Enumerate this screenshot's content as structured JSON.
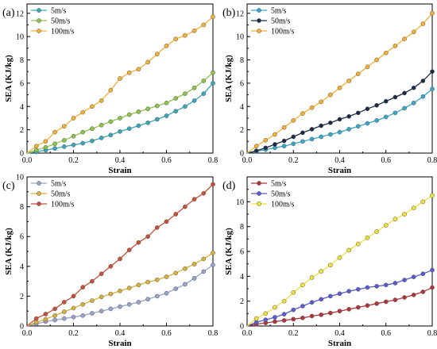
{
  "chart_data": [
    {
      "type": "line",
      "panel_label": "(a)",
      "xlabel": "Strain",
      "ylabel": "SEA (KJ/kg)",
      "xlim": [
        0,
        0.8
      ],
      "ylim": [
        0,
        12.8
      ],
      "xticks": [
        "0.0",
        "0.2",
        "0.4",
        "0.6",
        "0.8"
      ],
      "yticks": [
        "0",
        "2",
        "4",
        "6",
        "8",
        "10",
        "12"
      ],
      "legend_position": "top-left",
      "series": [
        {
          "name": "5m/s",
          "color": "#3aa6b9",
          "x": [
            0,
            0.04,
            0.08,
            0.12,
            0.16,
            0.2,
            0.24,
            0.28,
            0.32,
            0.36,
            0.4,
            0.44,
            0.48,
            0.52,
            0.56,
            0.6,
            0.64,
            0.68,
            0.72,
            0.76,
            0.8
          ],
          "y": [
            0,
            0.1,
            0.25,
            0.4,
            0.55,
            0.7,
            0.85,
            1.05,
            1.3,
            1.55,
            1.85,
            2.1,
            2.35,
            2.6,
            2.9,
            3.2,
            3.6,
            4.0,
            4.5,
            5.1,
            6.0
          ]
        },
        {
          "name": "50m/s",
          "color": "#8fc44a",
          "x": [
            0,
            0.04,
            0.08,
            0.12,
            0.16,
            0.2,
            0.24,
            0.28,
            0.32,
            0.36,
            0.4,
            0.44,
            0.48,
            0.52,
            0.56,
            0.6,
            0.64,
            0.68,
            0.72,
            0.76,
            0.8
          ],
          "y": [
            0,
            0.25,
            0.5,
            0.8,
            1.1,
            1.45,
            1.8,
            2.1,
            2.4,
            2.7,
            3.0,
            3.3,
            3.55,
            3.8,
            4.05,
            4.3,
            4.7,
            5.1,
            5.6,
            6.2,
            6.9
          ]
        },
        {
          "name": "100m/s",
          "color": "#f2b134",
          "x": [
            0,
            0.04,
            0.08,
            0.12,
            0.16,
            0.2,
            0.24,
            0.28,
            0.32,
            0.36,
            0.4,
            0.44,
            0.48,
            0.52,
            0.56,
            0.6,
            0.64,
            0.68,
            0.72,
            0.76,
            0.8
          ],
          "y": [
            0,
            0.6,
            1.0,
            1.8,
            2.3,
            3.0,
            3.5,
            4.0,
            4.5,
            5.4,
            6.4,
            6.9,
            7.2,
            7.8,
            8.5,
            9.2,
            9.8,
            10.1,
            10.5,
            11.0,
            11.7
          ]
        }
      ]
    },
    {
      "type": "line",
      "panel_label": "(b)",
      "xlabel": "Strain",
      "ylabel": "SEA (KJ/kg)",
      "xlim": [
        0,
        0.8
      ],
      "ylim": [
        0,
        12.8
      ],
      "xticks": [
        "0.0",
        "0.2",
        "0.4",
        "0.6",
        "0.8"
      ],
      "yticks": [
        "0",
        "2",
        "4",
        "6",
        "8",
        "10",
        "12"
      ],
      "legend_position": "top-left",
      "series": [
        {
          "name": "5m/s",
          "color": "#3aa6c9",
          "x": [
            0,
            0.04,
            0.08,
            0.12,
            0.16,
            0.2,
            0.24,
            0.28,
            0.32,
            0.36,
            0.4,
            0.44,
            0.48,
            0.52,
            0.56,
            0.6,
            0.64,
            0.68,
            0.72,
            0.76,
            0.8
          ],
          "y": [
            0,
            0.15,
            0.3,
            0.45,
            0.6,
            0.8,
            1.0,
            1.2,
            1.4,
            1.6,
            1.8,
            2.05,
            2.3,
            2.55,
            2.8,
            3.1,
            3.45,
            3.85,
            4.3,
            4.85,
            5.5
          ]
        },
        {
          "name": "50m/s",
          "color": "#1a2a44",
          "x": [
            0,
            0.04,
            0.08,
            0.12,
            0.16,
            0.2,
            0.24,
            0.28,
            0.32,
            0.36,
            0.4,
            0.44,
            0.48,
            0.52,
            0.56,
            0.6,
            0.64,
            0.68,
            0.72,
            0.76,
            0.8
          ],
          "y": [
            0,
            0.2,
            0.45,
            0.75,
            1.05,
            1.4,
            1.75,
            2.05,
            2.35,
            2.6,
            2.9,
            3.15,
            3.45,
            3.8,
            4.1,
            4.45,
            4.8,
            5.15,
            5.6,
            6.2,
            7.0
          ]
        },
        {
          "name": "100m/s",
          "color": "#f2b134",
          "x": [
            0,
            0.04,
            0.08,
            0.12,
            0.16,
            0.2,
            0.24,
            0.28,
            0.32,
            0.36,
            0.4,
            0.44,
            0.48,
            0.52,
            0.56,
            0.6,
            0.64,
            0.68,
            0.72,
            0.76,
            0.8
          ],
          "y": [
            0,
            0.6,
            1.1,
            1.6,
            2.2,
            2.8,
            3.4,
            3.9,
            4.4,
            5.0,
            5.6,
            6.2,
            6.8,
            7.4,
            8.0,
            8.6,
            9.2,
            9.8,
            10.4,
            11.1,
            12.0
          ]
        }
      ]
    },
    {
      "type": "line",
      "panel_label": "(c)",
      "xlabel": "Strain",
      "ylabel": "SEA (KJ/kg)",
      "xlim": [
        0,
        0.8
      ],
      "ylim": [
        0,
        10
      ],
      "xticks": [
        "0.0",
        "0.2",
        "0.4",
        "0.6",
        "0.8"
      ],
      "yticks": [
        "0",
        "2",
        "4",
        "6",
        "8",
        "10"
      ],
      "legend_position": "top-left",
      "series": [
        {
          "name": "5m/s",
          "color": "#9aa3cc",
          "x": [
            0,
            0.04,
            0.08,
            0.12,
            0.16,
            0.2,
            0.24,
            0.28,
            0.32,
            0.36,
            0.4,
            0.44,
            0.48,
            0.52,
            0.56,
            0.6,
            0.64,
            0.68,
            0.72,
            0.76,
            0.8
          ],
          "y": [
            0,
            0.15,
            0.3,
            0.4,
            0.5,
            0.6,
            0.7,
            0.85,
            1.0,
            1.15,
            1.3,
            1.45,
            1.6,
            1.8,
            2.0,
            2.2,
            2.5,
            2.8,
            3.2,
            3.65,
            4.1
          ]
        },
        {
          "name": "50m/s",
          "color": "#d9b13a",
          "x": [
            0,
            0.04,
            0.08,
            0.12,
            0.16,
            0.2,
            0.24,
            0.28,
            0.32,
            0.36,
            0.4,
            0.44,
            0.48,
            0.52,
            0.56,
            0.6,
            0.64,
            0.68,
            0.72,
            0.76,
            0.8
          ],
          "y": [
            0,
            0.25,
            0.45,
            0.7,
            0.95,
            1.2,
            1.45,
            1.7,
            1.95,
            2.15,
            2.35,
            2.55,
            2.75,
            2.95,
            3.1,
            3.3,
            3.55,
            3.85,
            4.15,
            4.5,
            4.9
          ]
        },
        {
          "name": "100m/s",
          "color": "#c4523a",
          "x": [
            0,
            0.04,
            0.08,
            0.12,
            0.16,
            0.2,
            0.24,
            0.28,
            0.32,
            0.36,
            0.4,
            0.44,
            0.48,
            0.52,
            0.56,
            0.6,
            0.64,
            0.68,
            0.72,
            0.76,
            0.8
          ],
          "y": [
            0,
            0.5,
            0.8,
            1.15,
            1.6,
            2.0,
            2.6,
            3.0,
            3.5,
            4.0,
            4.5,
            5.1,
            5.6,
            6.0,
            6.6,
            7.0,
            7.5,
            8.0,
            8.5,
            8.9,
            9.5
          ]
        }
      ]
    },
    {
      "type": "line",
      "panel_label": "(d)",
      "xlabel": "Strain",
      "ylabel": "SEA (KJ/kg)",
      "xlim": [
        0,
        0.8
      ],
      "ylim": [
        0,
        12
      ],
      "xticks": [
        "0.0",
        "0.2",
        "0.4",
        "0.6",
        "0.8"
      ],
      "yticks": [
        "0",
        "2",
        "4",
        "6",
        "8",
        "10"
      ],
      "legend_position": "top-left",
      "series": [
        {
          "name": "5m/s",
          "color": "#b0353a",
          "x": [
            0,
            0.04,
            0.08,
            0.12,
            0.16,
            0.2,
            0.24,
            0.28,
            0.32,
            0.36,
            0.4,
            0.44,
            0.48,
            0.52,
            0.56,
            0.6,
            0.64,
            0.68,
            0.72,
            0.76,
            0.8
          ],
          "y": [
            0,
            0.15,
            0.25,
            0.35,
            0.45,
            0.55,
            0.65,
            0.8,
            0.9,
            1.05,
            1.2,
            1.35,
            1.5,
            1.65,
            1.8,
            1.95,
            2.1,
            2.3,
            2.5,
            2.75,
            3.1
          ]
        },
        {
          "name": "50m/s",
          "color": "#5a5ad0",
          "x": [
            0,
            0.04,
            0.08,
            0.12,
            0.16,
            0.2,
            0.24,
            0.28,
            0.32,
            0.36,
            0.4,
            0.44,
            0.48,
            0.52,
            0.56,
            0.6,
            0.64,
            0.68,
            0.72,
            0.76,
            0.8
          ],
          "y": [
            0,
            0.3,
            0.5,
            0.7,
            0.95,
            1.3,
            1.6,
            1.9,
            2.15,
            2.4,
            2.6,
            2.8,
            2.95,
            3.1,
            3.2,
            3.3,
            3.45,
            3.7,
            3.95,
            4.2,
            4.5
          ]
        },
        {
          "name": "100m/s",
          "color": "#eee23a",
          "x": [
            0,
            0.04,
            0.08,
            0.12,
            0.16,
            0.2,
            0.24,
            0.28,
            0.32,
            0.36,
            0.4,
            0.44,
            0.48,
            0.52,
            0.56,
            0.6,
            0.64,
            0.68,
            0.72,
            0.76,
            0.8
          ],
          "y": [
            0,
            0.6,
            1.0,
            1.5,
            2.0,
            2.7,
            3.3,
            3.9,
            4.4,
            4.9,
            5.5,
            6.1,
            6.6,
            7.1,
            7.6,
            8.1,
            8.6,
            9.0,
            9.5,
            10.0,
            10.5
          ]
        }
      ]
    }
  ]
}
